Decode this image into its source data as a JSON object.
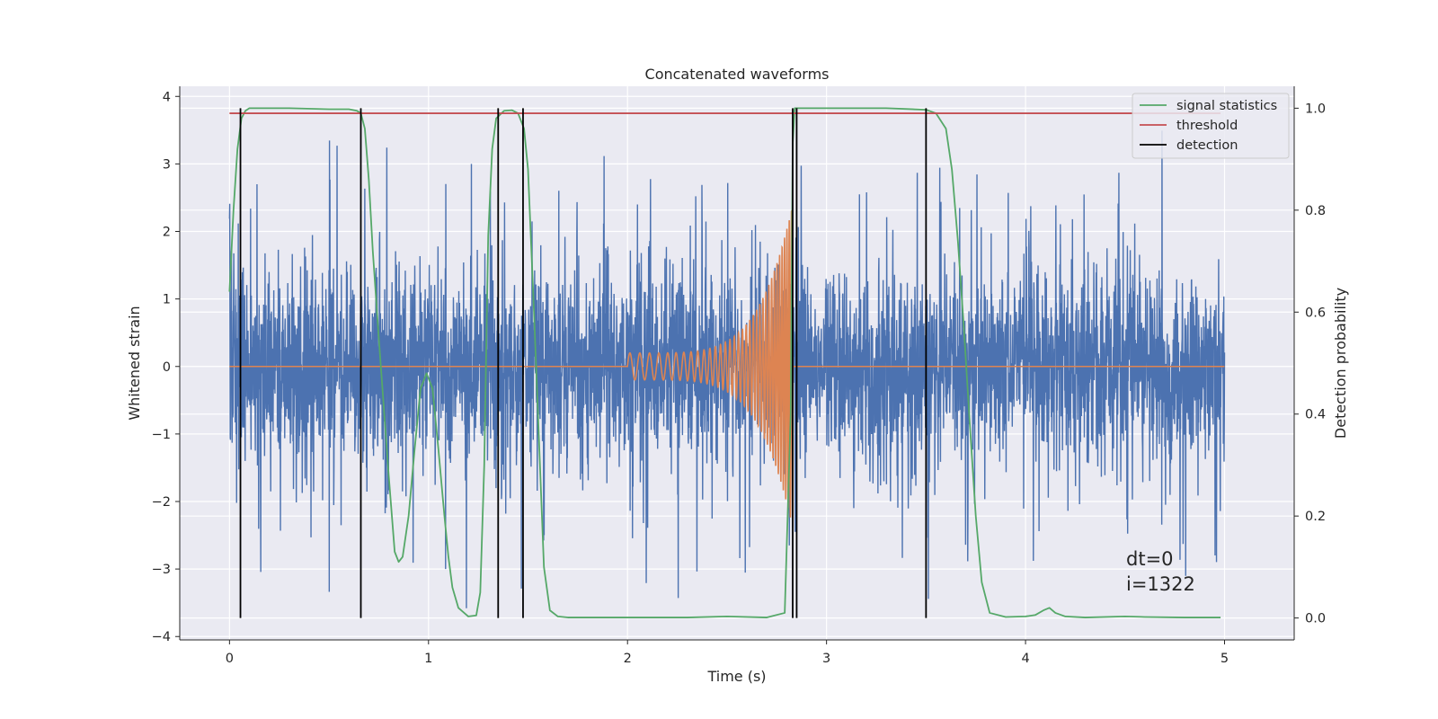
{
  "chart_data": {
    "type": "line",
    "title": "Concatenated waveforms",
    "xlabel": "Time (s)",
    "ylabel_left": "Whitened strain",
    "ylabel_right": "Detection probability",
    "xlim": [
      -0.25,
      5.35
    ],
    "ylim_left": [
      -4.05,
      4.15
    ],
    "ylim_right": [
      -0.043,
      1.043
    ],
    "x_ticks": [
      0,
      1,
      2,
      3,
      4,
      5
    ],
    "y_ticks_left": [
      -4,
      -3,
      -2,
      -1,
      0,
      1,
      2,
      3,
      4
    ],
    "y_ticks_right": [
      0.0,
      0.2,
      0.4,
      0.6,
      0.8,
      1.0
    ],
    "x_tick_labels": [
      "0",
      "1",
      "2",
      "3",
      "4",
      "5"
    ],
    "y_tick_labels_left": [
      "−4",
      "−3",
      "−2",
      "−1",
      "0",
      "1",
      "2",
      "3",
      "4"
    ],
    "y_tick_labels_right": [
      "0.0",
      "0.2",
      "0.4",
      "0.6",
      "0.8",
      "1.0"
    ],
    "grid": true,
    "legend_position": "top-right",
    "colors": {
      "strain": "#4c72b0",
      "template": "#dd8452",
      "signal_statistics": "#55a868",
      "threshold": "#c44e52",
      "detection": "#000000",
      "plot_background": "#eaeaf2",
      "grid": "#ffffff"
    },
    "legend": [
      {
        "label": "signal statistics",
        "color": "#55a868"
      },
      {
        "label": "threshold",
        "color": "#c44e52"
      },
      {
        "label": "detection",
        "color": "#000000"
      }
    ],
    "series": [
      {
        "name": "signal statistics",
        "axis": "right",
        "color": "#55a868",
        "x": [
          0.0,
          0.02,
          0.04,
          0.06,
          0.08,
          0.1,
          0.3,
          0.5,
          0.6,
          0.64,
          0.66,
          0.68,
          0.7,
          0.72,
          0.75,
          0.8,
          0.83,
          0.85,
          0.87,
          0.9,
          0.93,
          0.96,
          0.99,
          1.02,
          1.05,
          1.08,
          1.1,
          1.12,
          1.15,
          1.2,
          1.24,
          1.26,
          1.28,
          1.3,
          1.32,
          1.34,
          1.38,
          1.42,
          1.45,
          1.48,
          1.5,
          1.53,
          1.56,
          1.58,
          1.61,
          1.65,
          1.7,
          2.0,
          2.3,
          2.5,
          2.7,
          2.79,
          2.82,
          2.83,
          2.84,
          2.86,
          3.0,
          3.3,
          3.5,
          3.55,
          3.6,
          3.63,
          3.66,
          3.69,
          3.72,
          3.75,
          3.78,
          3.82,
          3.9,
          4.0,
          4.05,
          4.09,
          4.12,
          4.15,
          4.2,
          4.3,
          4.5,
          4.6,
          4.8,
          4.98
        ],
        "y": [
          0.64,
          0.8,
          0.92,
          0.98,
          0.995,
          1.0,
          1.0,
          0.998,
          0.998,
          0.995,
          0.99,
          0.96,
          0.86,
          0.72,
          0.55,
          0.28,
          0.13,
          0.11,
          0.12,
          0.2,
          0.33,
          0.45,
          0.48,
          0.45,
          0.33,
          0.2,
          0.12,
          0.06,
          0.02,
          0.003,
          0.005,
          0.05,
          0.3,
          0.75,
          0.92,
          0.98,
          0.995,
          0.996,
          0.99,
          0.96,
          0.88,
          0.6,
          0.3,
          0.1,
          0.015,
          0.003,
          0.001,
          0.001,
          0.001,
          0.003,
          0.001,
          0.01,
          0.4,
          0.93,
          1.0,
          1.0,
          1.0,
          1.0,
          0.997,
          0.99,
          0.96,
          0.88,
          0.74,
          0.57,
          0.38,
          0.2,
          0.07,
          0.01,
          0.002,
          0.003,
          0.006,
          0.015,
          0.02,
          0.01,
          0.003,
          0.001,
          0.003,
          0.002,
          0.001,
          0.001
        ]
      },
      {
        "name": "threshold",
        "axis": "right",
        "color": "#c44e52",
        "x": [
          0.0,
          4.98
        ],
        "y": [
          0.99,
          0.99
        ]
      },
      {
        "name": "detection",
        "axis": "right",
        "color": "#000000",
        "type": "vlines",
        "x": [
          0.055,
          0.66,
          1.35,
          1.475,
          2.83,
          2.85,
          3.5
        ],
        "ymin": 0.0,
        "ymax": 1.0
      }
    ],
    "strain": {
      "axis": "left",
      "color": "#4c72b0",
      "x_range": [
        0.0,
        5.0
      ],
      "core_amplitude": 0.72,
      "typical_extremes": [
        -2.5,
        2.5
      ],
      "max_spike": 3.8,
      "min_spike": -3.65
    },
    "template": {
      "axis": "left",
      "color": "#dd8452",
      "flat_ranges": [
        [
          0.0,
          2.0
        ],
        [
          2.83,
          5.0
        ]
      ],
      "chirp_range": [
        2.0,
        2.83
      ],
      "amplitude_start": 0.2,
      "amplitude_peak": 2.4,
      "frequency_start_hz": 20,
      "frequency_end_hz": 90
    },
    "annotations": [
      {
        "text": "dt=0",
        "x": 4.5,
        "y": -2.85
      },
      {
        "text": "i=1322",
        "x": 4.5,
        "y": -3.2
      }
    ]
  }
}
